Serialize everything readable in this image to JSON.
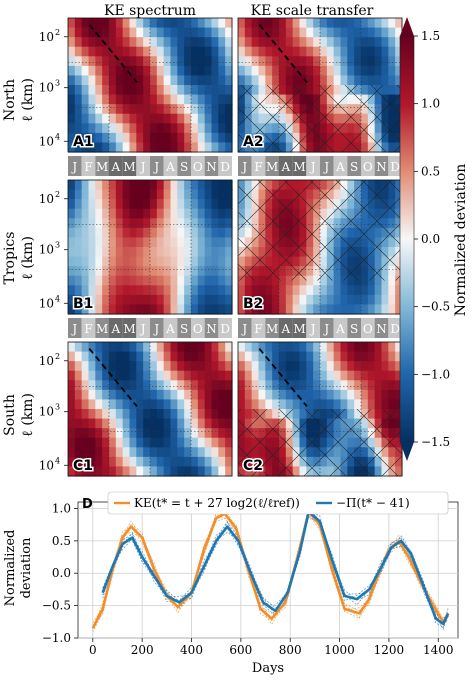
{
  "chart_data": [
    {
      "type": "heatmap",
      "column_titles": [
        "KE spectrum",
        "KE scale transfer"
      ],
      "row_titles": [
        {
          "region": "North",
          "unit": "ℓ (km)"
        },
        {
          "region": "Tropics",
          "unit": "ℓ (km)"
        },
        {
          "region": "South",
          "unit": "ℓ (km)"
        }
      ],
      "panel_labels": [
        [
          "A1",
          "A2"
        ],
        [
          "B1",
          "B2"
        ],
        [
          "C1",
          "C2"
        ]
      ],
      "y_tick_labels": [
        "10",
        "10",
        "10"
      ],
      "y_tick_exponents": [
        "2",
        "3",
        "4"
      ],
      "y_scale": "log",
      "y_inverted": true,
      "ylim_km": [
        30,
        10000
      ],
      "months": [
        "J",
        "F",
        "M",
        "A",
        "M",
        "J",
        "J",
        "A",
        "S",
        "O",
        "N",
        "D"
      ],
      "hatched_regions": "unresolved scale transfer (cross-hatched) in A2, B2, C2",
      "dashed_line": "diagonal dashed line in A1, A2, C1, C2",
      "colorbar": {
        "label": "Normalized deviation",
        "ticks": [
          "1.5",
          "1.0",
          "0.5",
          "0.0",
          "−0.5",
          "−1.0",
          "−1.5"
        ],
        "range": [
          -1.5,
          1.5
        ],
        "cmap": "RdBu_r",
        "extend": "both"
      }
    },
    {
      "type": "line",
      "panel_label": "D",
      "xlabel": "Days",
      "ylabel": [
        "Normalized",
        "deviation"
      ],
      "xlim": [
        -60,
        1480
      ],
      "ylim": [
        -1.0,
        1.1
      ],
      "x_ticks": [
        "0",
        "200",
        "400",
        "600",
        "800",
        "1000",
        "1200",
        "1400"
      ],
      "y_ticks": [
        "1.0",
        "0.5",
        "0.0",
        "−0.5",
        "−1.0"
      ],
      "grid": true,
      "legend_placement": "top",
      "series": [
        {
          "name": "KE(t* = t + 27 log2(ℓ/ℓref))",
          "color": "#f28e2b",
          "x": [
            0,
            40,
            80,
            120,
            155,
            200,
            250,
            300,
            345,
            400,
            450,
            500,
            535,
            580,
            630,
            680,
            725,
            780,
            830,
            875,
            920,
            970,
            1020,
            1080,
            1120,
            1160,
            1200,
            1240,
            1280,
            1330,
            1380,
            1420,
            1440
          ],
          "values": [
            -0.85,
            -0.55,
            0.05,
            0.55,
            0.72,
            0.55,
            0.05,
            -0.35,
            -0.52,
            -0.3,
            0.35,
            0.85,
            0.92,
            0.7,
            0.05,
            -0.55,
            -0.7,
            -0.45,
            0.25,
            0.95,
            0.75,
            0.05,
            -0.55,
            -0.62,
            -0.4,
            0.0,
            0.35,
            0.5,
            0.25,
            -0.15,
            -0.5,
            -0.75,
            -0.65
          ]
        },
        {
          "name": "−Π(t* − 41)",
          "color": "#1f77b4",
          "x": [
            40,
            80,
            120,
            160,
            200,
            250,
            300,
            350,
            400,
            450,
            500,
            545,
            590,
            640,
            690,
            740,
            790,
            840,
            875,
            920,
            970,
            1020,
            1070,
            1120,
            1170,
            1210,
            1250,
            1290,
            1340,
            1390,
            1420,
            1440
          ],
          "values": [
            -0.3,
            0.1,
            0.45,
            0.55,
            0.25,
            -0.05,
            -0.35,
            -0.45,
            -0.3,
            0.1,
            0.5,
            0.72,
            0.5,
            0.0,
            -0.45,
            -0.58,
            -0.3,
            0.35,
            0.95,
            0.8,
            0.2,
            -0.35,
            -0.4,
            -0.25,
            0.1,
            0.4,
            0.5,
            0.3,
            -0.2,
            -0.7,
            -0.78,
            -0.62
          ]
        }
      ]
    }
  ]
}
